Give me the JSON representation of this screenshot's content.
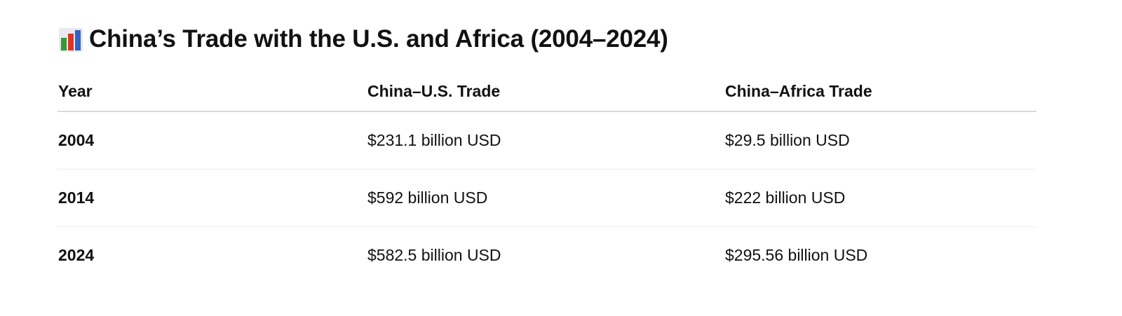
{
  "header": {
    "title": "China’s Trade with the U.S. and Africa (2004–2024)"
  },
  "table": {
    "columns": [
      "Year",
      "China–U.S. Trade",
      "China–Africa Trade"
    ],
    "rows": [
      [
        "2004",
        "$231.1 billion USD",
        "$29.5 billion USD"
      ],
      [
        "2014",
        "$592 billion USD",
        "$222 billion USD"
      ],
      [
        "2024",
        "$582.5 billion USD",
        "$295.56 billion USD"
      ]
    ]
  }
}
